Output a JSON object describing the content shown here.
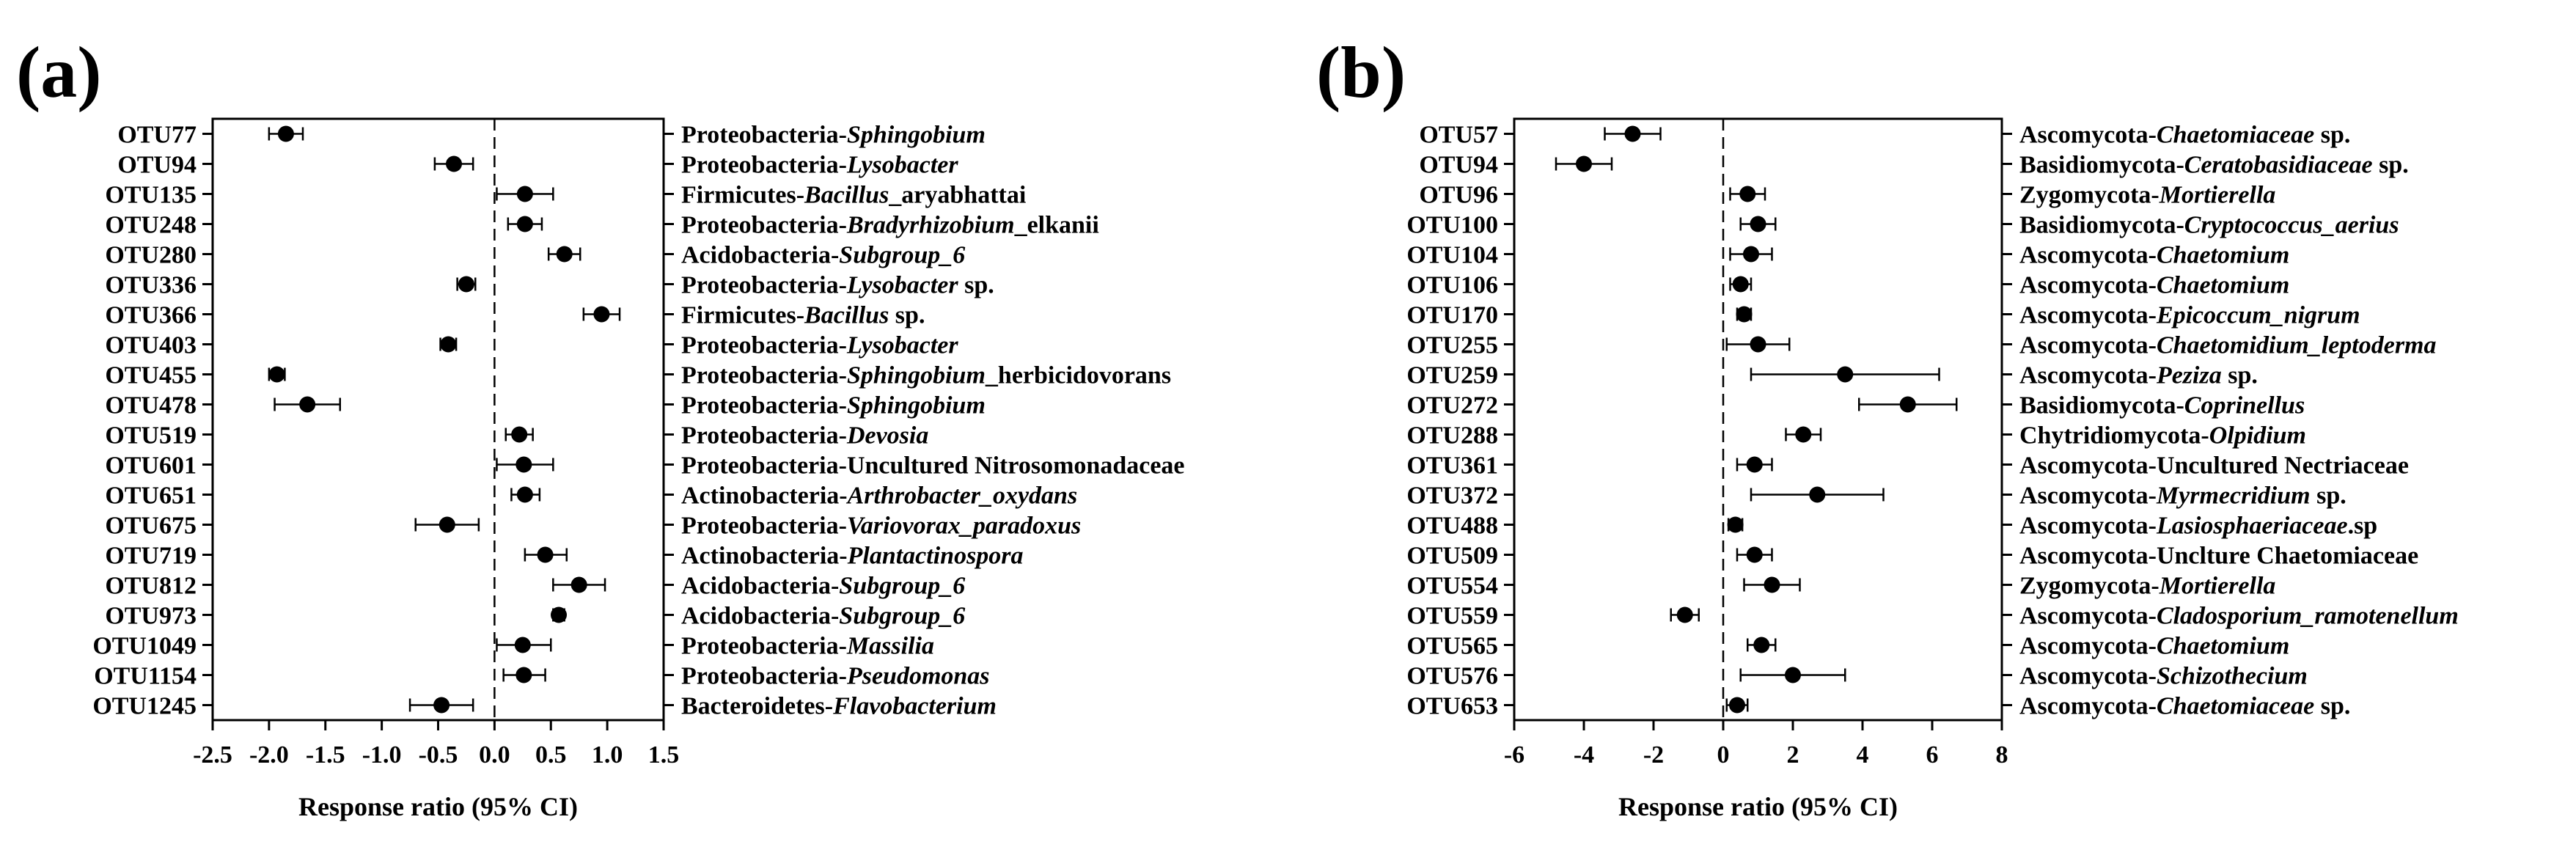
{
  "chart_data": [
    {
      "type": "scatter",
      "panel_label": "(a)",
      "xlabel": "Response ratio (95% CI)",
      "xlim": [
        -2.5,
        1.5
      ],
      "xticks": [
        "-2.5",
        "-2.0",
        "-1.5",
        "-1.0",
        "-0.5",
        "0.0",
        "0.5",
        "1.0",
        "1.5"
      ],
      "xtick_values": [
        -2.5,
        -2.0,
        -1.5,
        -1.0,
        -0.5,
        0.0,
        0.5,
        1.0,
        1.5
      ],
      "reference_line": 0,
      "rows": [
        {
          "otu": "OTU77",
          "phylum": "Proteobacteria-",
          "genus": "Sphingobium",
          "suffix": "",
          "mean": -1.85,
          "lo": -2.0,
          "hi": -1.7
        },
        {
          "otu": "OTU94",
          "phylum": "Proteobacteria-",
          "genus": "Lysobacter",
          "suffix": "",
          "mean": -0.36,
          "lo": -0.53,
          "hi": -0.19
        },
        {
          "otu": "OTU135",
          "phylum": "Firmicutes-",
          "genus": "Bacillus",
          "suffix": "_aryabhattai",
          "mean": 0.27,
          "lo": 0.02,
          "hi": 0.52
        },
        {
          "otu": "OTU248",
          "phylum": "Proteobacteria-",
          "genus": "Bradyrhizobium",
          "suffix": "_elkanii",
          "mean": 0.27,
          "lo": 0.12,
          "hi": 0.42
        },
        {
          "otu": "OTU280",
          "phylum": "Acidobacteria-",
          "genus": "Subgroup_6",
          "suffix": "",
          "mean": 0.62,
          "lo": 0.48,
          "hi": 0.76
        },
        {
          "otu": "OTU336",
          "phylum": "Proteobacteria-",
          "genus": "Lysobacter",
          "suffix": " sp.",
          "mean": -0.25,
          "lo": -0.33,
          "hi": -0.17
        },
        {
          "otu": "OTU366",
          "phylum": "Firmicutes-",
          "genus": "Bacillus",
          "suffix": " sp.",
          "mean": 0.95,
          "lo": 0.79,
          "hi": 1.11
        },
        {
          "otu": "OTU403",
          "phylum": "Proteobacteria-",
          "genus": "Lysobacter",
          "suffix": "",
          "mean": -0.41,
          "lo": -0.48,
          "hi": -0.34
        },
        {
          "otu": "OTU455",
          "phylum": "Proteobacteria-",
          "genus": "Sphingobium",
          "suffix": "_herbicidovorans",
          "mean": -1.93,
          "lo": -2.0,
          "hi": -1.86
        },
        {
          "otu": "OTU478",
          "phylum": "Proteobacteria-",
          "genus": "Sphingobium",
          "suffix": "",
          "mean": -1.66,
          "lo": -1.95,
          "hi": -1.37
        },
        {
          "otu": "OTU519",
          "phylum": "Proteobacteria-",
          "genus": "Devosia",
          "suffix": "",
          "mean": 0.22,
          "lo": 0.1,
          "hi": 0.34
        },
        {
          "otu": "OTU601",
          "phylum": "Proteobacteria-",
          "genus": "",
          "suffix": "Uncultured Nitrosomonadaceae",
          "mean": 0.26,
          "lo": 0.02,
          "hi": 0.52
        },
        {
          "otu": "OTU651",
          "phylum": "Actinobacteria-",
          "genus": "Arthrobacter_oxydans",
          "suffix": "",
          "mean": 0.27,
          "lo": 0.15,
          "hi": 0.4
        },
        {
          "otu": "OTU675",
          "phylum": "Proteobacteria-",
          "genus": "Variovorax_paradoxus",
          "suffix": "",
          "mean": -0.42,
          "lo": -0.7,
          "hi": -0.14
        },
        {
          "otu": "OTU719",
          "phylum": "Actinobacteria-",
          "genus": "Plantactinospora",
          "suffix": "",
          "mean": 0.45,
          "lo": 0.27,
          "hi": 0.64
        },
        {
          "otu": "OTU812",
          "phylum": "Acidobacteria-",
          "genus": "Subgroup_6",
          "suffix": "",
          "mean": 0.75,
          "lo": 0.52,
          "hi": 0.98
        },
        {
          "otu": "OTU973",
          "phylum": "Acidobacteria-",
          "genus": "Subgroup_6",
          "suffix": "",
          "mean": 0.57,
          "lo": 0.52,
          "hi": 0.62
        },
        {
          "otu": "OTU1049",
          "phylum": "Proteobacteria-",
          "genus": "Massilia",
          "suffix": "",
          "mean": 0.25,
          "lo": 0.02,
          "hi": 0.5
        },
        {
          "otu": "OTU1154",
          "phylum": "Proteobacteria-",
          "genus": "Pseudomonas",
          "suffix": "",
          "mean": 0.26,
          "lo": 0.08,
          "hi": 0.45
        },
        {
          "otu": "OTU1245",
          "phylum": "Bacteroidetes-",
          "genus": "Flavobacterium",
          "suffix": "",
          "mean": -0.47,
          "lo": -0.75,
          "hi": -0.19
        }
      ]
    },
    {
      "type": "scatter",
      "panel_label": "(b)",
      "xlabel": "Response ratio (95% CI)",
      "xlim": [
        -6,
        8
      ],
      "xticks": [
        "-6",
        "-4",
        "-2",
        "0",
        "2",
        "4",
        "6",
        "8"
      ],
      "xtick_values": [
        -6,
        -4,
        -2,
        0,
        2,
        4,
        6,
        8
      ],
      "reference_line": 0,
      "rows": [
        {
          "otu": "OTU57",
          "phylum": "Ascomycota-",
          "genus": "Chaetomiaceae",
          "suffix": " sp.",
          "mean": -2.6,
          "lo": -3.4,
          "hi": -1.8
        },
        {
          "otu": "OTU94",
          "phylum": "Basidiomycota-",
          "genus": "Ceratobasidiaceae",
          "suffix": " sp.",
          "mean": -4.0,
          "lo": -4.8,
          "hi": -3.2
        },
        {
          "otu": "OTU96",
          "phylum": "Zygomycota-",
          "genus": "Mortierella",
          "suffix": "",
          "mean": 0.7,
          "lo": 0.2,
          "hi": 1.2
        },
        {
          "otu": "OTU100",
          "phylum": "Basidiomycota-",
          "genus": "Cryptococcus_aerius",
          "suffix": "",
          "mean": 1.0,
          "lo": 0.5,
          "hi": 1.5
        },
        {
          "otu": "OTU104",
          "phylum": "Ascomycota-",
          "genus": "Chaetomium",
          "suffix": "",
          "mean": 0.8,
          "lo": 0.2,
          "hi": 1.4
        },
        {
          "otu": "OTU106",
          "phylum": "Ascomycota-",
          "genus": "Chaetomium",
          "suffix": "",
          "mean": 0.5,
          "lo": 0.2,
          "hi": 0.8
        },
        {
          "otu": "OTU170",
          "phylum": "Ascomycota-",
          "genus": "Epicoccum_nigrum",
          "suffix": "",
          "mean": 0.6,
          "lo": 0.4,
          "hi": 0.8
        },
        {
          "otu": "OTU255",
          "phylum": "Ascomycota-",
          "genus": "Chaetomidium_leptoderma",
          "suffix": "",
          "mean": 1.0,
          "lo": 0.1,
          "hi": 1.9
        },
        {
          "otu": "OTU259",
          "phylum": "Ascomycota-",
          "genus": "Peziza",
          "suffix": " sp.",
          "mean": 3.5,
          "lo": 0.8,
          "hi": 6.2
        },
        {
          "otu": "OTU272",
          "phylum": "Basidiomycota-",
          "genus": "Coprinellus",
          "suffix": "",
          "mean": 5.3,
          "lo": 3.9,
          "hi": 6.7
        },
        {
          "otu": "OTU288",
          "phylum": "Chytridiomycota-",
          "genus": "Olpidium",
          "suffix": "",
          "mean": 2.3,
          "lo": 1.8,
          "hi": 2.8
        },
        {
          "otu": "OTU361",
          "phylum": "Ascomycota-",
          "genus": "",
          "suffix": "Uncultured Nectriaceae",
          "mean": 0.9,
          "lo": 0.4,
          "hi": 1.4
        },
        {
          "otu": "OTU372",
          "phylum": "Ascomycota-",
          "genus": "Myrmecridium",
          "suffix": " sp.",
          "mean": 2.7,
          "lo": 0.8,
          "hi": 4.6
        },
        {
          "otu": "OTU488",
          "phylum": "Ascomycota-",
          "genus": "Lasiosphaeriaceae",
          "suffix": ".sp",
          "mean": 0.35,
          "lo": 0.15,
          "hi": 0.55
        },
        {
          "otu": "OTU509",
          "phylum": "Ascomycota-",
          "genus": "",
          "suffix": "Unclture Chaetomiaceae",
          "mean": 0.9,
          "lo": 0.4,
          "hi": 1.4
        },
        {
          "otu": "OTU554",
          "phylum": "Zygomycota-",
          "genus": "Mortierella",
          "suffix": "",
          "mean": 1.4,
          "lo": 0.6,
          "hi": 2.2
        },
        {
          "otu": "OTU559",
          "phylum": "Ascomycota-",
          "genus": "Cladosporium_ramotenellum",
          "suffix": "",
          "mean": -1.1,
          "lo": -1.5,
          "hi": -0.7
        },
        {
          "otu": "OTU565",
          "phylum": "Ascomycota-",
          "genus": "Chaetomium",
          "suffix": "",
          "mean": 1.1,
          "lo": 0.7,
          "hi": 1.5
        },
        {
          "otu": "OTU576",
          "phylum": "Ascomycota-",
          "genus": "Schizothecium",
          "suffix": "",
          "mean": 2.0,
          "lo": 0.5,
          "hi": 3.5
        },
        {
          "otu": "OTU653",
          "phylum": "Ascomycota-",
          "genus": "Chaetomiaceae",
          "suffix": " sp.",
          "mean": 0.4,
          "lo": 0.1,
          "hi": 0.7
        }
      ]
    }
  ]
}
